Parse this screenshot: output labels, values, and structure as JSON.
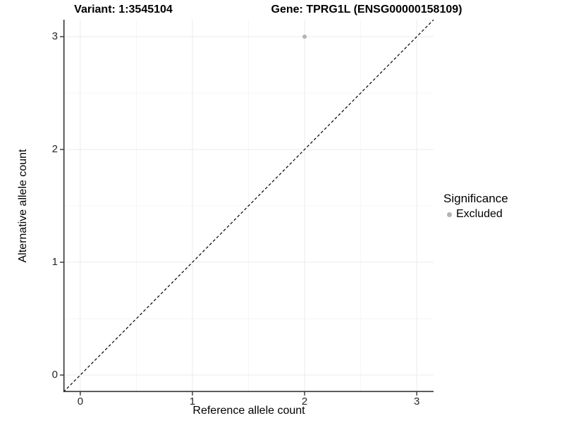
{
  "titles": {
    "variant": "Variant: 1:3545104",
    "gene": "Gene: TPRG1L (ENSG00000158109)"
  },
  "axes": {
    "x_title": "Reference allele count",
    "y_title": "Alternative allele count"
  },
  "legend": {
    "title": "Significance",
    "items": [
      {
        "label": "Excluded",
        "color": "#b3b3b3"
      }
    ]
  },
  "chart_data": {
    "type": "scatter",
    "title": "Variant: 1:3545104 / Gene: TPRG1L (ENSG00000158109)",
    "xlabel": "Reference allele count",
    "ylabel": "Alternative allele count",
    "xlim": [
      -0.15,
      3.15
    ],
    "ylim": [
      -0.15,
      3.15
    ],
    "x_ticks": [
      0,
      1,
      2,
      3
    ],
    "y_ticks": [
      0,
      1,
      2,
      3
    ],
    "minor_ticks": [
      0.5,
      1.5,
      2.5
    ],
    "grid": true,
    "legend_position": "right",
    "series": [
      {
        "name": "Excluded",
        "color": "#b3b3b3",
        "points": [
          {
            "x": 2,
            "y": 3
          }
        ]
      }
    ],
    "reference_line": {
      "type": "identity y=x",
      "style": "dashed",
      "color": "#000000"
    },
    "colors": {
      "grid_major": "#ebebeb",
      "grid_minor": "#f5f5f5",
      "axis_line": "#333333",
      "point": "#b3b3b3",
      "background": "#ffffff"
    }
  }
}
